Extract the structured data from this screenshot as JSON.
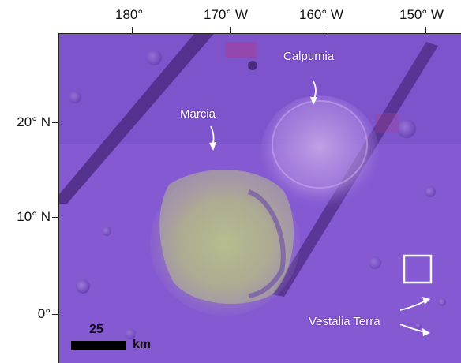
{
  "longitude_labels": [
    "180°",
    "170° W",
    "160° W",
    "150° W"
  ],
  "latitude_labels": [
    "20° N",
    "10° N",
    "0°"
  ],
  "features": {
    "calpurnia": "Calpurnia",
    "marcia": "Marcia",
    "vestalia": "Vestalia Terra"
  },
  "scale_bar": {
    "value": "25",
    "unit": "km"
  },
  "colors": {
    "terrain": "#8a5fd6",
    "terrain_dark": "#5e3aa8",
    "ejecta": "#b9c27a",
    "strip": "#4a2c7a"
  }
}
